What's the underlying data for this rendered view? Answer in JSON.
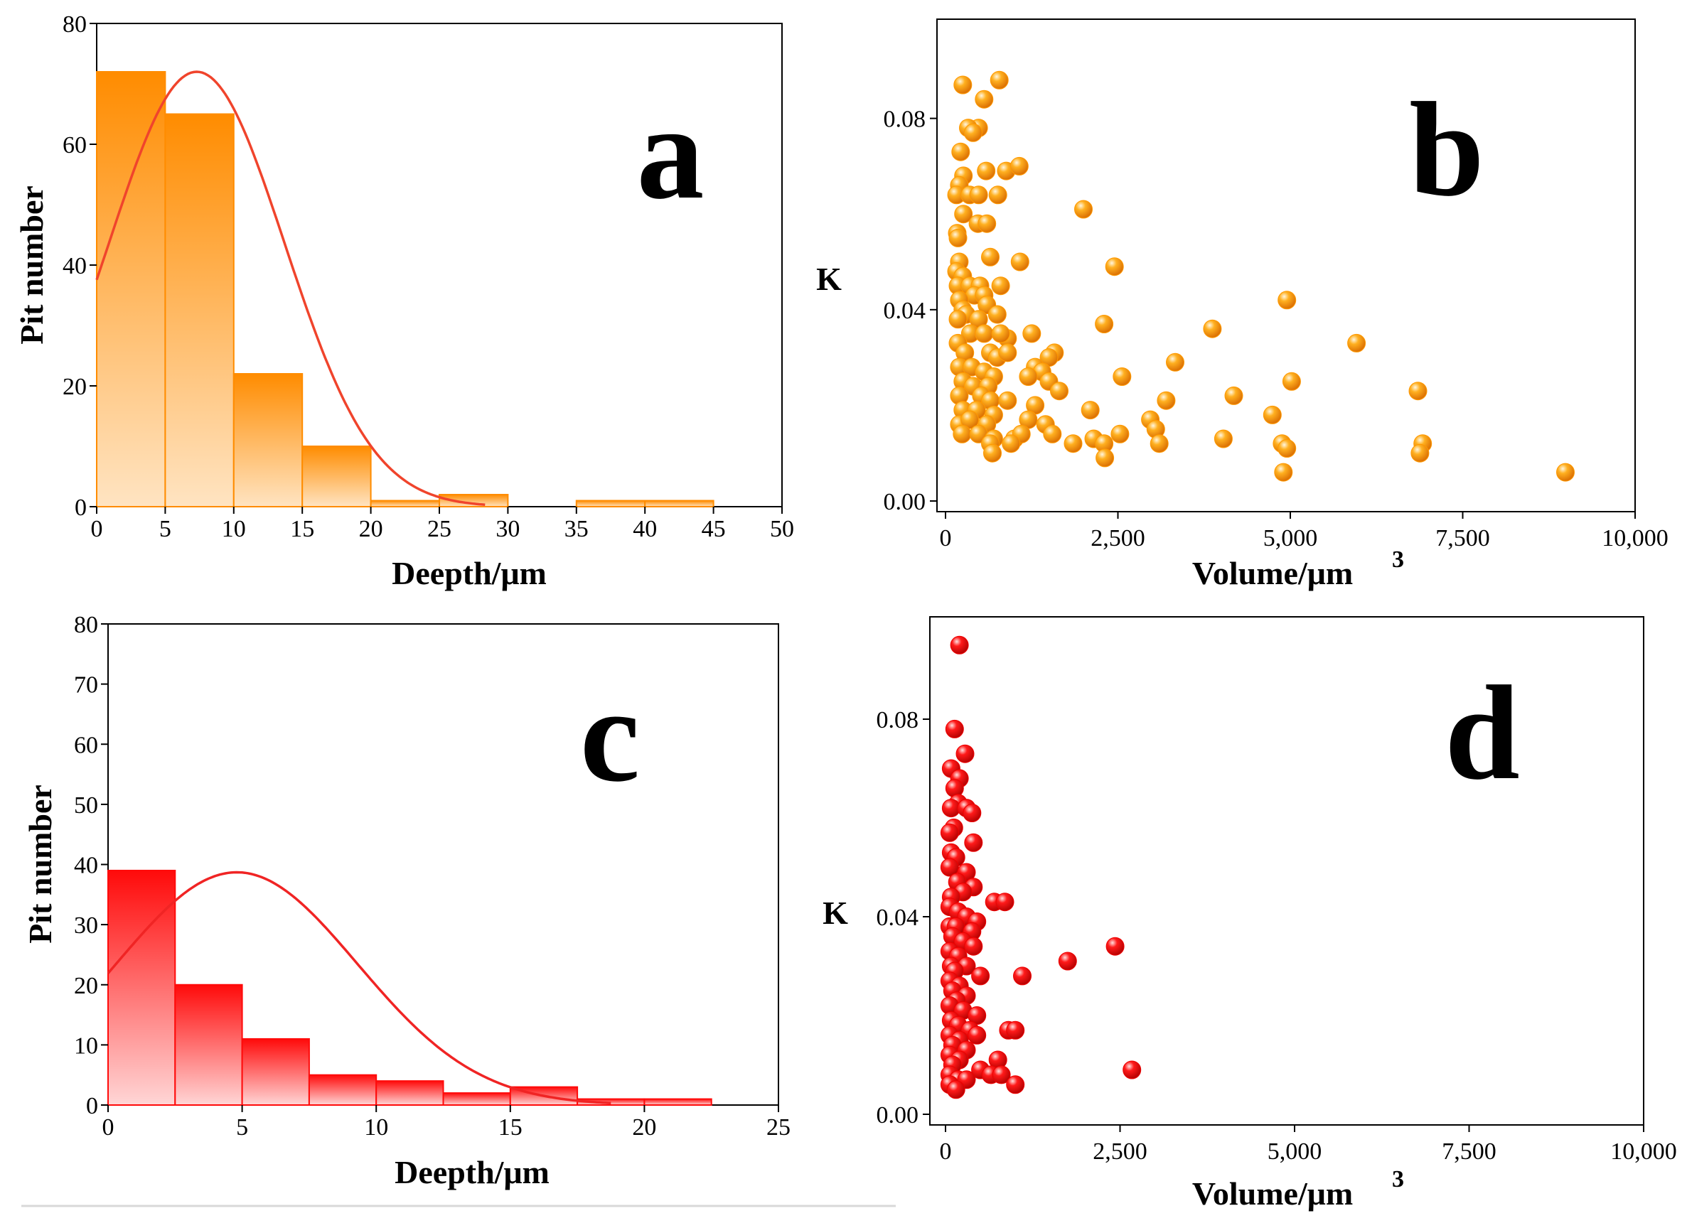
{
  "chart_data": [
    {
      "panel": "a",
      "type": "bar",
      "letter": "a",
      "xlabel": "Deepth/μm",
      "ylabel": "Pit number",
      "xlim": [
        0,
        50
      ],
      "ylim": [
        0,
        80
      ],
      "xticks": [
        "0",
        "5",
        "10",
        "15",
        "20",
        "25",
        "30",
        "35",
        "40",
        "45",
        "50"
      ],
      "yticks": [
        "0",
        "20",
        "40",
        "60",
        "80"
      ],
      "bins": [
        [
          0,
          5
        ],
        [
          5,
          10
        ],
        [
          10,
          15
        ],
        [
          15,
          20
        ],
        [
          20,
          25
        ],
        [
          25,
          30
        ],
        [
          30,
          35
        ],
        [
          35,
          40
        ],
        [
          40,
          45
        ]
      ],
      "values": [
        72,
        65,
        22,
        10,
        1,
        2,
        0,
        1,
        1
      ],
      "fit": {
        "type": "normal",
        "peak_x": 7.3,
        "peak_y": 72,
        "sigma": 6.4
      },
      "colors": {
        "bar_top": "#ff8c00",
        "bar_bottom": "#ffe4c2",
        "fit": "#f0442c"
      }
    },
    {
      "panel": "b",
      "type": "scatter",
      "letter": "b",
      "xlabel": "Volume/μm",
      "xlabel_sup": "3",
      "ylabel": "K",
      "xlim": [
        0,
        10000
      ],
      "ylim": [
        0,
        0.1
      ],
      "xticks": [
        "0",
        "2,500",
        "5,000",
        "7,500",
        "10,000"
      ],
      "yticks": [
        "0.00",
        "0.04",
        "0.08"
      ],
      "color": "#ff9900",
      "points": [
        [
          250,
          0.087
        ],
        [
          780,
          0.088
        ],
        [
          560,
          0.084
        ],
        [
          480,
          0.078
        ],
        [
          330,
          0.078
        ],
        [
          400,
          0.077
        ],
        [
          220,
          0.073
        ],
        [
          260,
          0.068
        ],
        [
          590,
          0.069
        ],
        [
          880,
          0.069
        ],
        [
          1070,
          0.07
        ],
        [
          200,
          0.066
        ],
        [
          160,
          0.064
        ],
        [
          350,
          0.064
        ],
        [
          480,
          0.064
        ],
        [
          760,
          0.064
        ],
        [
          260,
          0.06
        ],
        [
          470,
          0.058
        ],
        [
          600,
          0.058
        ],
        [
          2000,
          0.061
        ],
        [
          170,
          0.056
        ],
        [
          180,
          0.055
        ],
        [
          650,
          0.051
        ],
        [
          1080,
          0.05
        ],
        [
          2450,
          0.049
        ],
        [
          200,
          0.05
        ],
        [
          160,
          0.048
        ],
        [
          250,
          0.047
        ],
        [
          180,
          0.045
        ],
        [
          350,
          0.045
        ],
        [
          500,
          0.045
        ],
        [
          800,
          0.045
        ],
        [
          420,
          0.043
        ],
        [
          560,
          0.043
        ],
        [
          200,
          0.042
        ],
        [
          4950,
          0.042
        ],
        [
          250,
          0.04
        ],
        [
          600,
          0.041
        ],
        [
          300,
          0.039
        ],
        [
          750,
          0.039
        ],
        [
          180,
          0.038
        ],
        [
          480,
          0.038
        ],
        [
          2300,
          0.037
        ],
        [
          3870,
          0.036
        ],
        [
          360,
          0.035
        ],
        [
          560,
          0.035
        ],
        [
          900,
          0.034
        ],
        [
          800,
          0.035
        ],
        [
          1250,
          0.035
        ],
        [
          1580,
          0.031
        ],
        [
          5960,
          0.033
        ],
        [
          180,
          0.033
        ],
        [
          280,
          0.031
        ],
        [
          650,
          0.031
        ],
        [
          750,
          0.03
        ],
        [
          900,
          0.031
        ],
        [
          1500,
          0.03
        ],
        [
          3330,
          0.029
        ],
        [
          200,
          0.028
        ],
        [
          380,
          0.028
        ],
        [
          560,
          0.027
        ],
        [
          1300,
          0.028
        ],
        [
          1400,
          0.027
        ],
        [
          700,
          0.026
        ],
        [
          1200,
          0.026
        ],
        [
          2560,
          0.026
        ],
        [
          250,
          0.025
        ],
        [
          400,
          0.024
        ],
        [
          620,
          0.024
        ],
        [
          1500,
          0.025
        ],
        [
          1650,
          0.023
        ],
        [
          5020,
          0.025
        ],
        [
          6850,
          0.023
        ],
        [
          200,
          0.022
        ],
        [
          520,
          0.022
        ],
        [
          650,
          0.021
        ],
        [
          900,
          0.021
        ],
        [
          4180,
          0.022
        ],
        [
          3200,
          0.021
        ],
        [
          250,
          0.019
        ],
        [
          450,
          0.019
        ],
        [
          700,
          0.018
        ],
        [
          1300,
          0.02
        ],
        [
          2100,
          0.019
        ],
        [
          4740,
          0.018
        ],
        [
          2970,
          0.017
        ],
        [
          200,
          0.016
        ],
        [
          350,
          0.017
        ],
        [
          600,
          0.016
        ],
        [
          1200,
          0.017
        ],
        [
          1450,
          0.016
        ],
        [
          3050,
          0.015
        ],
        [
          240,
          0.014
        ],
        [
          480,
          0.014
        ],
        [
          700,
          0.013
        ],
        [
          1000,
          0.013
        ],
        [
          1100,
          0.014
        ],
        [
          1550,
          0.014
        ],
        [
          2530,
          0.014
        ],
        [
          650,
          0.012
        ],
        [
          950,
          0.012
        ],
        [
          1850,
          0.012
        ],
        [
          2150,
          0.013
        ],
        [
          2300,
          0.012
        ],
        [
          3100,
          0.012
        ],
        [
          4030,
          0.013
        ],
        [
          4880,
          0.012
        ],
        [
          6920,
          0.012
        ],
        [
          680,
          0.01
        ],
        [
          4950,
          0.011
        ],
        [
          6880,
          0.01
        ],
        [
          2310,
          0.009
        ],
        [
          4900,
          0.006
        ],
        [
          8990,
          0.006
        ]
      ]
    },
    {
      "panel": "c",
      "type": "bar",
      "letter": "c",
      "xlabel": "Deepth/μm",
      "ylabel": "Pit number",
      "xlim": [
        0,
        25
      ],
      "ylim": [
        0,
        80
      ],
      "xticks": [
        "0",
        "5",
        "10",
        "15",
        "20",
        "25"
      ],
      "yticks": [
        "0",
        "10",
        "20",
        "30",
        "40",
        "50",
        "60",
        "70",
        "80"
      ],
      "bins": [
        [
          0,
          2.5
        ],
        [
          2.5,
          5
        ],
        [
          5,
          7.5
        ],
        [
          7.5,
          10
        ],
        [
          10,
          12.5
        ],
        [
          12.5,
          15
        ],
        [
          15,
          17.5
        ],
        [
          17.5,
          20
        ],
        [
          20,
          22.5
        ]
      ],
      "values": [
        39,
        20,
        11,
        5,
        4,
        2,
        3,
        1,
        1
      ],
      "fit": {
        "type": "normal",
        "peak_x": 4.8,
        "peak_y": 38.7,
        "sigma": 4.5
      },
      "colors": {
        "bar_top": "#ff0a0a",
        "bar_bottom": "#ffd6d6",
        "fit": "#f02424"
      }
    },
    {
      "panel": "d",
      "type": "scatter",
      "letter": "d",
      "xlabel": "Volume/μm",
      "xlabel_sup": "3",
      "ylabel": "K",
      "xlim": [
        0,
        10000
      ],
      "ylim": [
        0,
        0.1
      ],
      "xticks": [
        "0",
        "2,500",
        "5,000",
        "7,500",
        "10,000"
      ],
      "yticks": [
        "0.00",
        "0.04",
        "0.08"
      ],
      "color": "#ee0000",
      "points": [
        [
          200,
          0.095
        ],
        [
          130,
          0.078
        ],
        [
          280,
          0.073
        ],
        [
          80,
          0.07
        ],
        [
          200,
          0.068
        ],
        [
          130,
          0.066
        ],
        [
          180,
          0.063
        ],
        [
          80,
          0.062
        ],
        [
          300,
          0.062
        ],
        [
          380,
          0.061
        ],
        [
          120,
          0.058
        ],
        [
          60,
          0.057
        ],
        [
          400,
          0.055
        ],
        [
          80,
          0.053
        ],
        [
          150,
          0.052
        ],
        [
          60,
          0.05
        ],
        [
          300,
          0.049
        ],
        [
          170,
          0.047
        ],
        [
          400,
          0.046
        ],
        [
          250,
          0.045
        ],
        [
          80,
          0.044
        ],
        [
          700,
          0.043
        ],
        [
          850,
          0.043
        ],
        [
          60,
          0.042
        ],
        [
          180,
          0.041
        ],
        [
          300,
          0.04
        ],
        [
          450,
          0.039
        ],
        [
          60,
          0.038
        ],
        [
          150,
          0.038
        ],
        [
          380,
          0.037
        ],
        [
          100,
          0.036
        ],
        [
          250,
          0.035
        ],
        [
          2430,
          0.034
        ],
        [
          400,
          0.034
        ],
        [
          60,
          0.033
        ],
        [
          180,
          0.032
        ],
        [
          1750,
          0.031
        ],
        [
          80,
          0.03
        ],
        [
          300,
          0.03
        ],
        [
          130,
          0.029
        ],
        [
          500,
          0.028
        ],
        [
          1100,
          0.028
        ],
        [
          60,
          0.027
        ],
        [
          200,
          0.026
        ],
        [
          100,
          0.025
        ],
        [
          300,
          0.024
        ],
        [
          160,
          0.023
        ],
        [
          60,
          0.022
        ],
        [
          250,
          0.021
        ],
        [
          450,
          0.02
        ],
        [
          80,
          0.019
        ],
        [
          180,
          0.018
        ],
        [
          350,
          0.017
        ],
        [
          900,
          0.017
        ],
        [
          1000,
          0.017
        ],
        [
          60,
          0.016
        ],
        [
          450,
          0.016
        ],
        [
          200,
          0.015
        ],
        [
          100,
          0.014
        ],
        [
          300,
          0.013
        ],
        [
          60,
          0.012
        ],
        [
          200,
          0.011
        ],
        [
          750,
          0.011
        ],
        [
          100,
          0.01
        ],
        [
          2670,
          0.009
        ],
        [
          500,
          0.009
        ],
        [
          650,
          0.008
        ],
        [
          800,
          0.008
        ],
        [
          60,
          0.008
        ],
        [
          180,
          0.007
        ],
        [
          300,
          0.007
        ],
        [
          60,
          0.006
        ],
        [
          1000,
          0.006
        ],
        [
          150,
          0.005
        ]
      ]
    }
  ]
}
